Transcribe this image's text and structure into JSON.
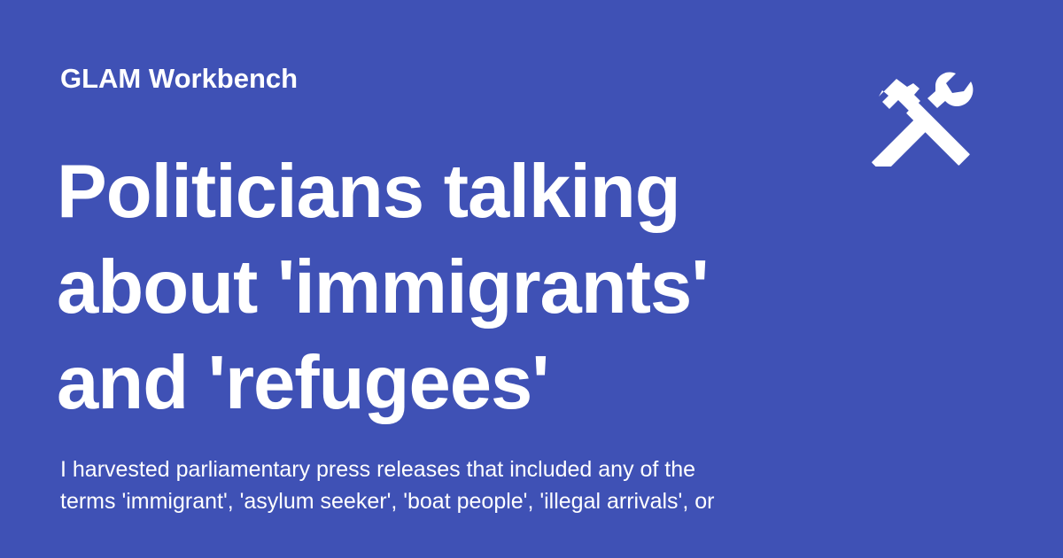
{
  "colors": {
    "background": "#3f51b5",
    "text": "#ffffff"
  },
  "header": {
    "site_name": "GLAM Workbench",
    "logo_icon": "hammer-wrench-icon"
  },
  "main": {
    "title_lines": [
      "Politicians talking",
      "about 'immigrants'",
      "and 'refugees'"
    ],
    "description_lines": [
      "I harvested parliamentary press releases that included any of the",
      "terms 'immigrant', 'asylum seeker', 'boat people', 'illegal arrivals', or"
    ]
  }
}
